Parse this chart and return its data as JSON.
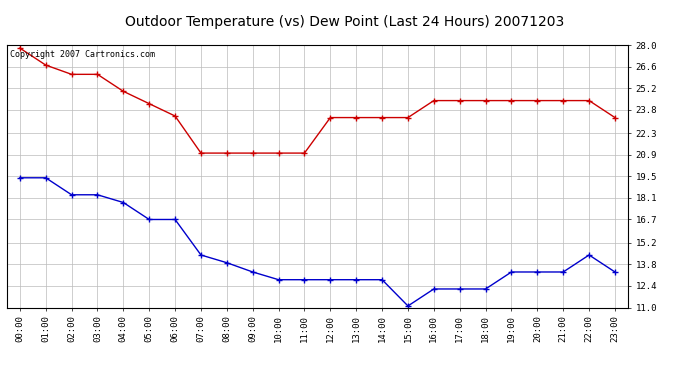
{
  "title": "Outdoor Temperature (vs) Dew Point (Last 24 Hours) 20071203",
  "copyright": "Copyright 2007 Cartronics.com",
  "x_labels": [
    "00:00",
    "01:00",
    "02:00",
    "03:00",
    "04:00",
    "05:00",
    "06:00",
    "07:00",
    "08:00",
    "09:00",
    "10:00",
    "11:00",
    "12:00",
    "13:00",
    "14:00",
    "15:00",
    "16:00",
    "17:00",
    "18:00",
    "19:00",
    "20:00",
    "21:00",
    "22:00",
    "23:00"
  ],
  "temp_data": [
    27.8,
    26.7,
    26.1,
    26.1,
    25.0,
    24.2,
    23.4,
    21.0,
    21.0,
    21.0,
    21.0,
    21.0,
    23.3,
    23.3,
    23.3,
    23.3,
    24.4,
    24.4,
    24.4,
    24.4,
    24.4,
    24.4,
    24.4,
    23.3
  ],
  "dew_data": [
    19.4,
    19.4,
    18.3,
    18.3,
    17.8,
    16.7,
    16.7,
    14.4,
    13.9,
    13.3,
    12.8,
    12.8,
    12.8,
    12.8,
    12.8,
    11.1,
    12.2,
    12.2,
    12.2,
    13.3,
    13.3,
    13.3,
    14.4,
    13.3
  ],
  "temp_color": "#cc0000",
  "dew_color": "#0000cc",
  "ylim_min": 11.0,
  "ylim_max": 28.0,
  "yticks": [
    11.0,
    12.4,
    13.8,
    15.2,
    16.7,
    18.1,
    19.5,
    20.9,
    22.3,
    23.8,
    25.2,
    26.6,
    28.0
  ],
  "background_color": "#ffffff",
  "grid_color": "#bbbbbb",
  "title_fontsize": 10,
  "tick_fontsize": 6.5,
  "copyright_fontsize": 6
}
